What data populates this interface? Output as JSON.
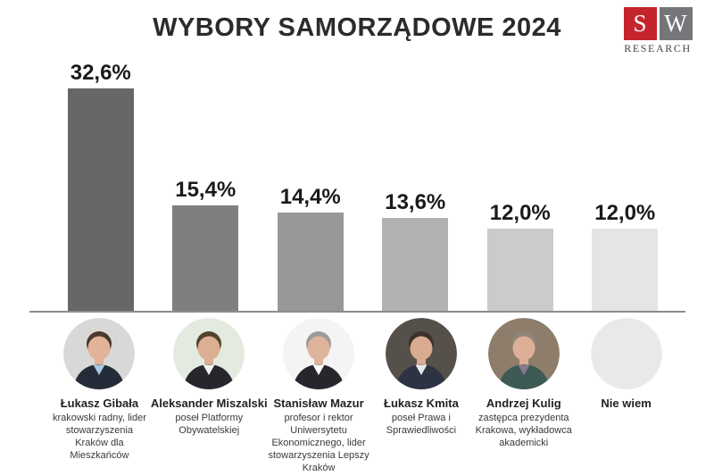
{
  "title": "WYBORY SAMORZĄDOWE 2024",
  "logo": {
    "letter_s": "S",
    "letter_w": "W",
    "subtitle": "RESEARCH",
    "red": "#c4242c",
    "gray": "#75767a"
  },
  "chart_data": {
    "type": "bar",
    "title": "WYBORY SAMORZĄDOWE 2024",
    "categories": [
      "Łukasz Gibała",
      "Aleksander Miszalski",
      "Stanisław Mazur",
      "Łukasz Kmita",
      "Andrzej Kulig",
      "Nie wiem"
    ],
    "values": [
      32.6,
      15.4,
      14.4,
      13.6,
      12.0,
      12.0
    ],
    "value_labels": [
      "32,6%",
      "15,4%",
      "14,4%",
      "13,6%",
      "12,0%",
      "12,0%"
    ],
    "bar_colors": [
      "#676767",
      "#7f7f7f",
      "#989898",
      "#b2b2b2",
      "#cbcbcb",
      "#e5e5e5"
    ],
    "ylim": [
      0,
      35
    ],
    "grid": false,
    "legend": false
  },
  "candidates": [
    {
      "name": "Łukasz Gibała",
      "description": "krakowski radny, lider stowarzyszenia Kraków dla Mieszkańców",
      "avatar": {
        "bg": "#d8d8d6",
        "hair": "#4a3a2e",
        "skin": "#e2b399",
        "suit": "#232c38",
        "shirt": "#a9c7e2"
      }
    },
    {
      "name": "Aleksander Miszalski",
      "description": "poseł Platformy Obywatelskiej",
      "avatar": {
        "bg": "#e3ebe0",
        "hair": "#54422e",
        "skin": "#dcae92",
        "suit": "#26262c",
        "shirt": "#f2f2f2"
      }
    },
    {
      "name": "Stanisław Mazur",
      "description": "profesor i rektor Uniwersytetu Ekonomicznego, lider stowarzyszenia Lepszy Kraków",
      "avatar": {
        "bg": "#f4f4f4",
        "hair": "#9b9b9b",
        "skin": "#e0b49c",
        "suit": "#26262c",
        "shirt": "#ffffff"
      }
    },
    {
      "name": "Łukasz Kmita",
      "description": "poseł Prawa i Sprawiedliwości",
      "avatar": {
        "bg": "#55504a",
        "hair": "#3c3228",
        "skin": "#d9ab90",
        "suit": "#2c3444",
        "shirt": "#e8e8e8"
      }
    },
    {
      "name": "Andrzej Kulig",
      "description": "zastępca prezydenta Krakowa, wykładowca akademicki",
      "avatar": {
        "bg": "#8d7d6a",
        "hair": "#8f8578",
        "skin": "#dfae96",
        "suit": "#3d5a55",
        "shirt": "#8a7a8e"
      }
    },
    {
      "name": "Nie wiem",
      "description": "",
      "avatar": {
        "bg": "#e9e9e9",
        "empty": true
      }
    }
  ]
}
